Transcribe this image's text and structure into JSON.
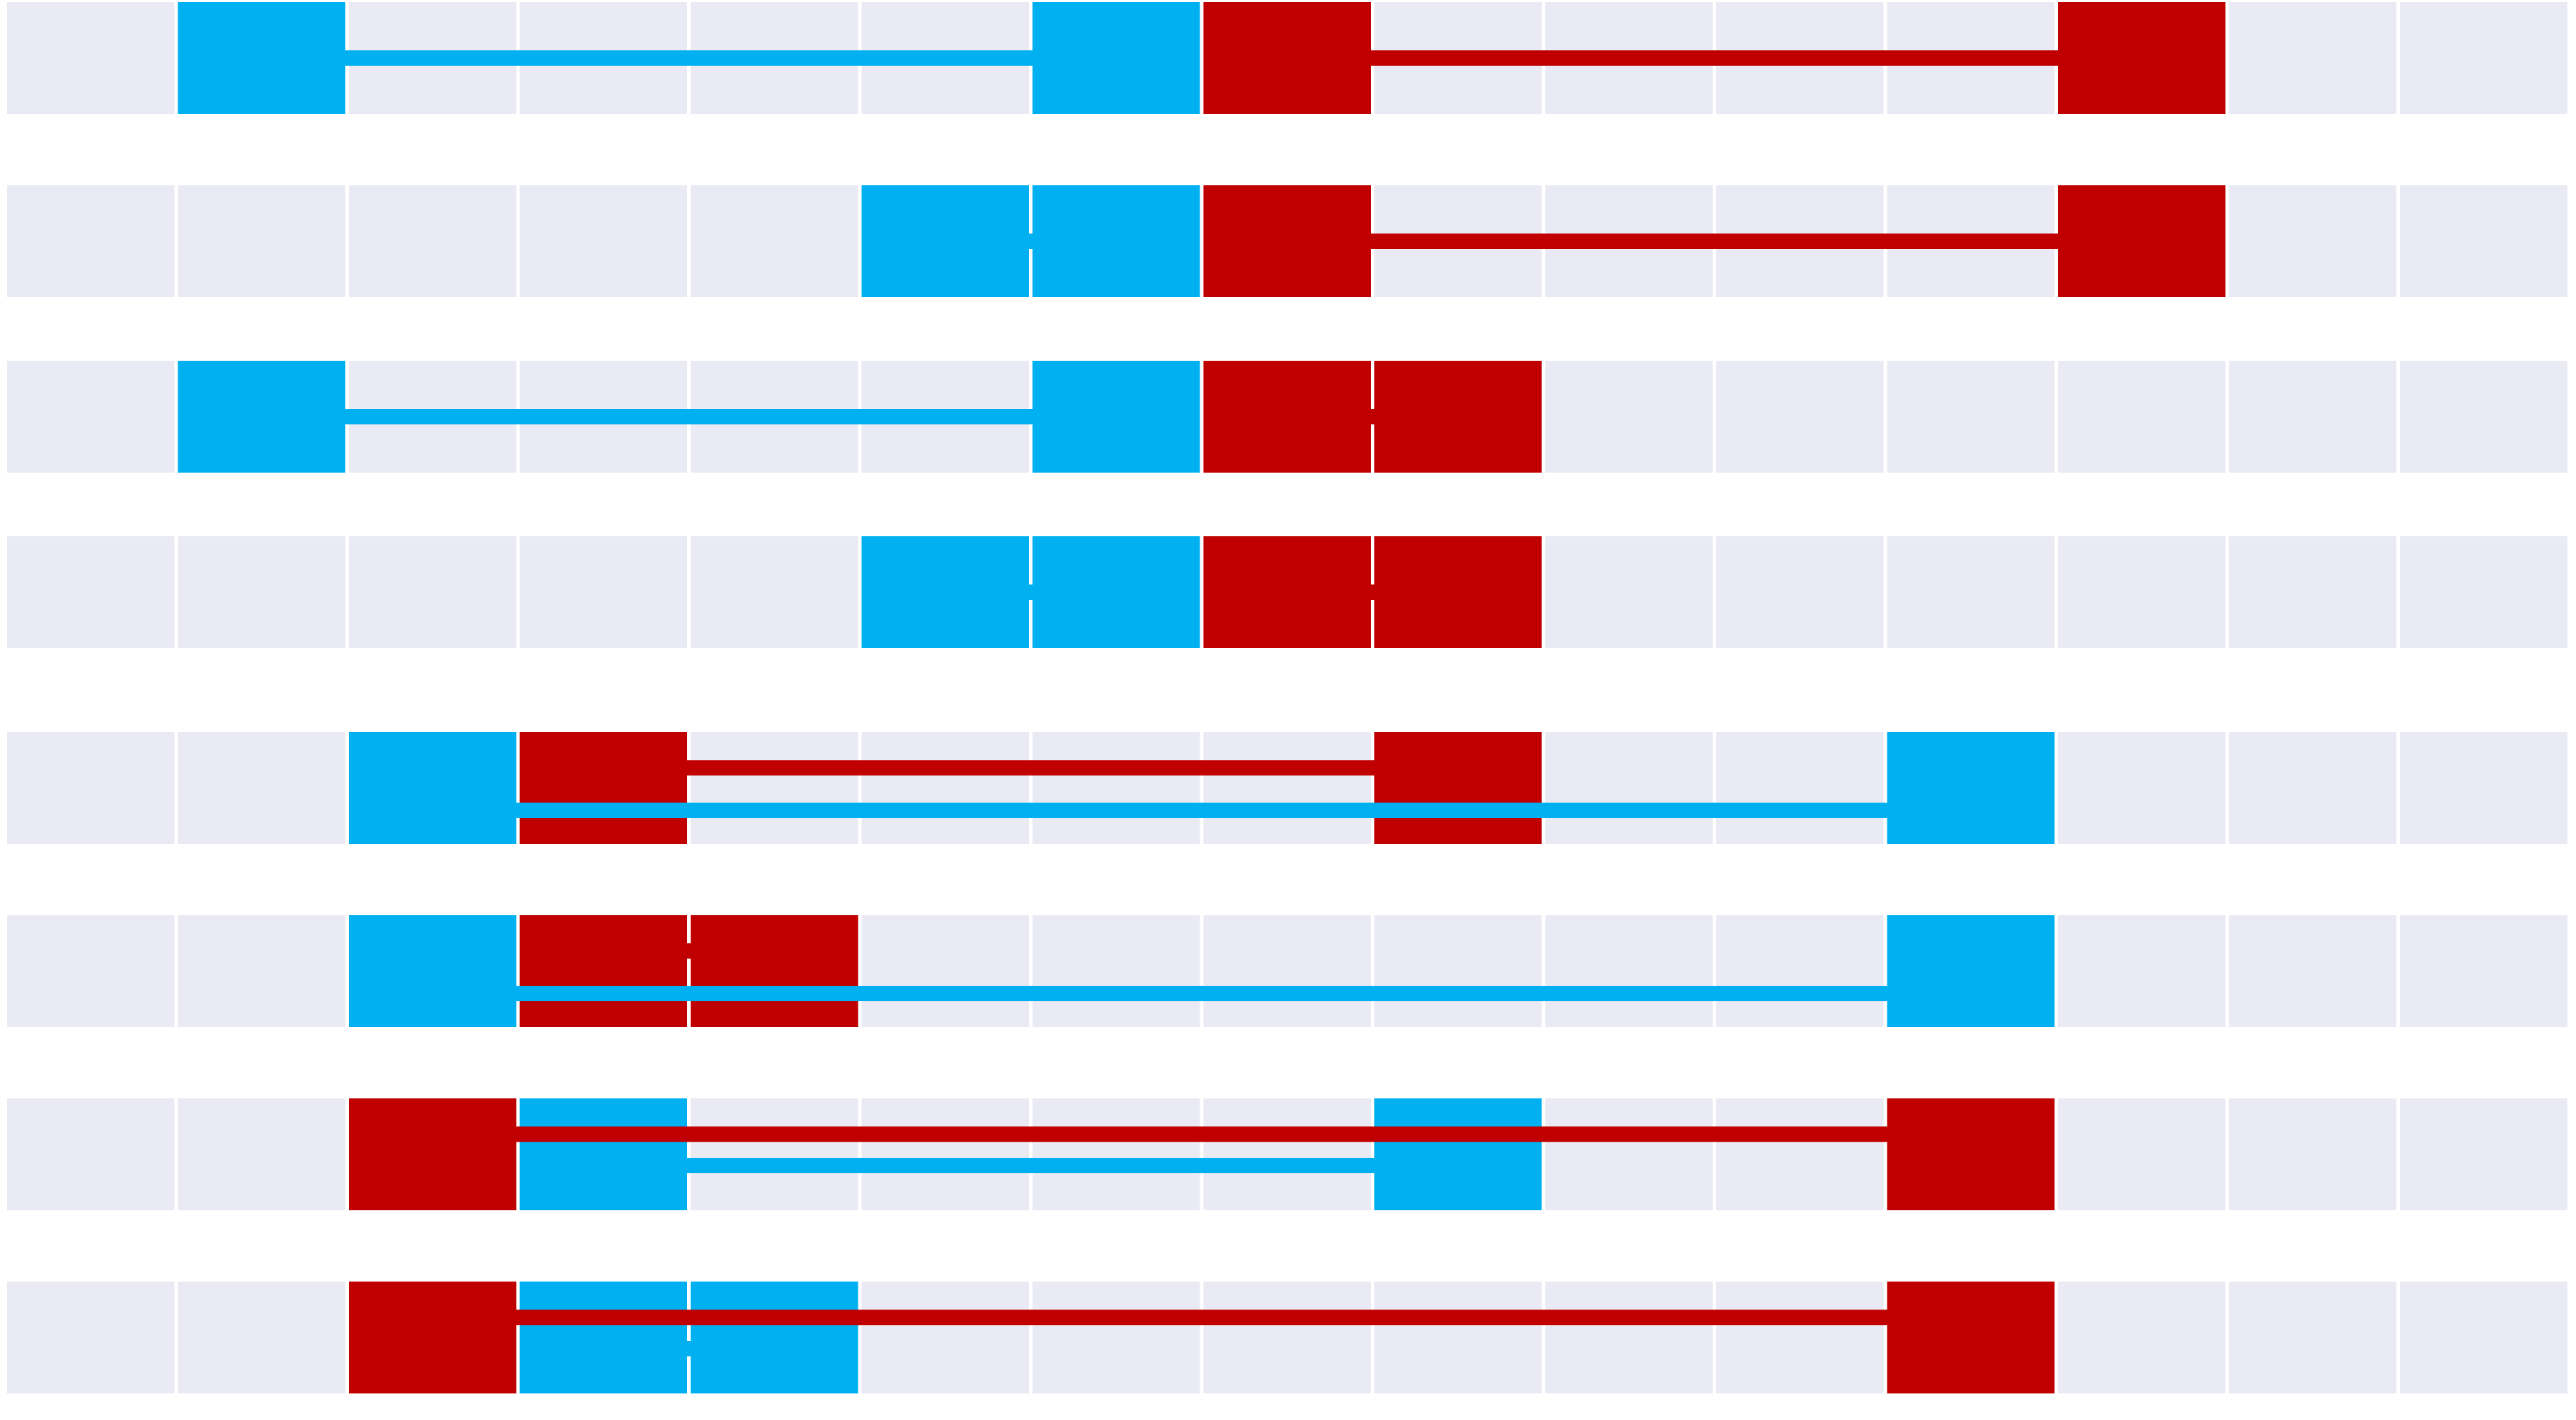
{
  "colors": {
    "background": "#ffffff",
    "empty_cell": "#eaeaf4",
    "blue": "#00b0f0",
    "red": "#c00000"
  },
  "diagram": {
    "columns": 15,
    "rows": [
      {
        "blue": [
          1,
          6
        ],
        "red": [
          7,
          12
        ]
      },
      {
        "blue": [
          5,
          6
        ],
        "red": [
          7,
          12
        ]
      },
      {
        "blue": [
          1,
          6
        ],
        "red": [
          7,
          8
        ]
      },
      {
        "blue": [
          5,
          6
        ],
        "red": [
          7,
          8
        ]
      },
      {
        "blue": [
          2,
          11
        ],
        "red": [
          3,
          8
        ]
      },
      {
        "blue": [
          2,
          11
        ],
        "red": [
          3,
          4
        ]
      },
      {
        "blue": [
          3,
          8
        ],
        "red": [
          2,
          11
        ]
      },
      {
        "blue": [
          3,
          4
        ],
        "red": [
          2,
          11
        ]
      }
    ]
  }
}
